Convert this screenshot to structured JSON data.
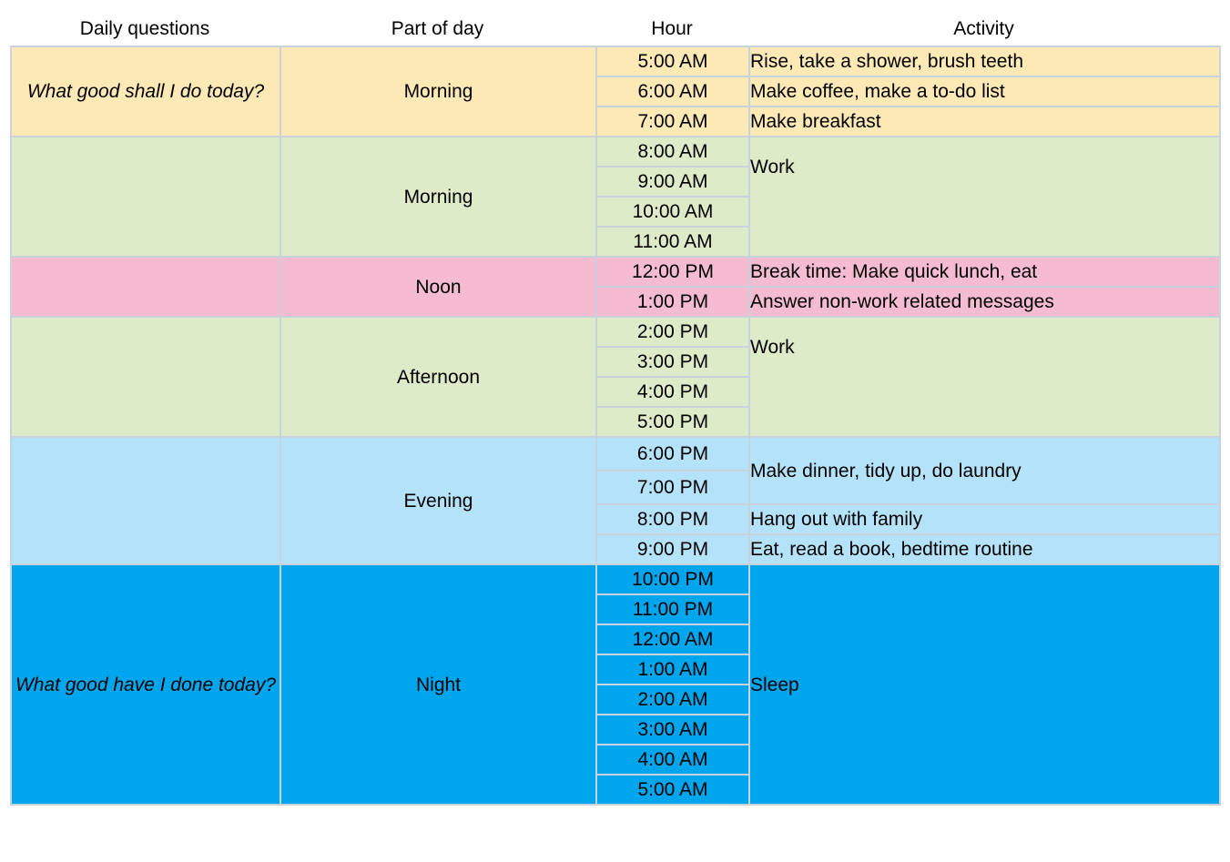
{
  "headers": {
    "daily_questions": "Daily questions",
    "part_of_day": "Part of day",
    "hour": "Hour",
    "activity": "Activity"
  },
  "questions": {
    "morning": "What good shall I do today?",
    "night": "What good have I done today?"
  },
  "parts": {
    "p1": "Morning",
    "p2": "Morning",
    "p3": "Noon",
    "p4": "Afternoon",
    "p5": "Evening",
    "p6": "Night"
  },
  "hours": [
    "5:00 AM",
    "6:00 AM",
    "7:00 AM",
    "8:00 AM",
    "9:00 AM",
    "10:00 AM",
    "11:00 AM",
    "12:00 PM",
    "1:00 PM",
    "2:00 PM",
    "3:00 PM",
    "4:00 PM",
    "5:00 PM",
    "6:00 PM",
    "7:00 PM",
    "8:00 PM",
    "9:00 PM",
    "10:00 PM",
    "11:00 PM",
    "12:00 AM",
    "1:00 AM",
    "2:00 AM",
    "3:00 AM",
    "4:00 AM",
    "5:00 AM"
  ],
  "activities": {
    "a1": "Rise, take a shower, brush teeth",
    "a2": "Make coffee, make a to-do list",
    "a3": "Make breakfast",
    "a4": "Work",
    "a5": "Break time: Make quick lunch, eat",
    "a6": "Answer non-work related messages",
    "a7": "Work",
    "a8": "Make dinner, tidy up, do laundry",
    "a9": "Hang out with family",
    "a10": "Eat, read a book, bedtime routine",
    "a11": "Sleep"
  },
  "colors": {
    "yellow": "#fde9b6",
    "green": "#deebc8",
    "pink": "#f5bcd1",
    "light_blue": "#b4e2f8",
    "blue": "#00a6ed",
    "grid": "#c8d2dc"
  }
}
